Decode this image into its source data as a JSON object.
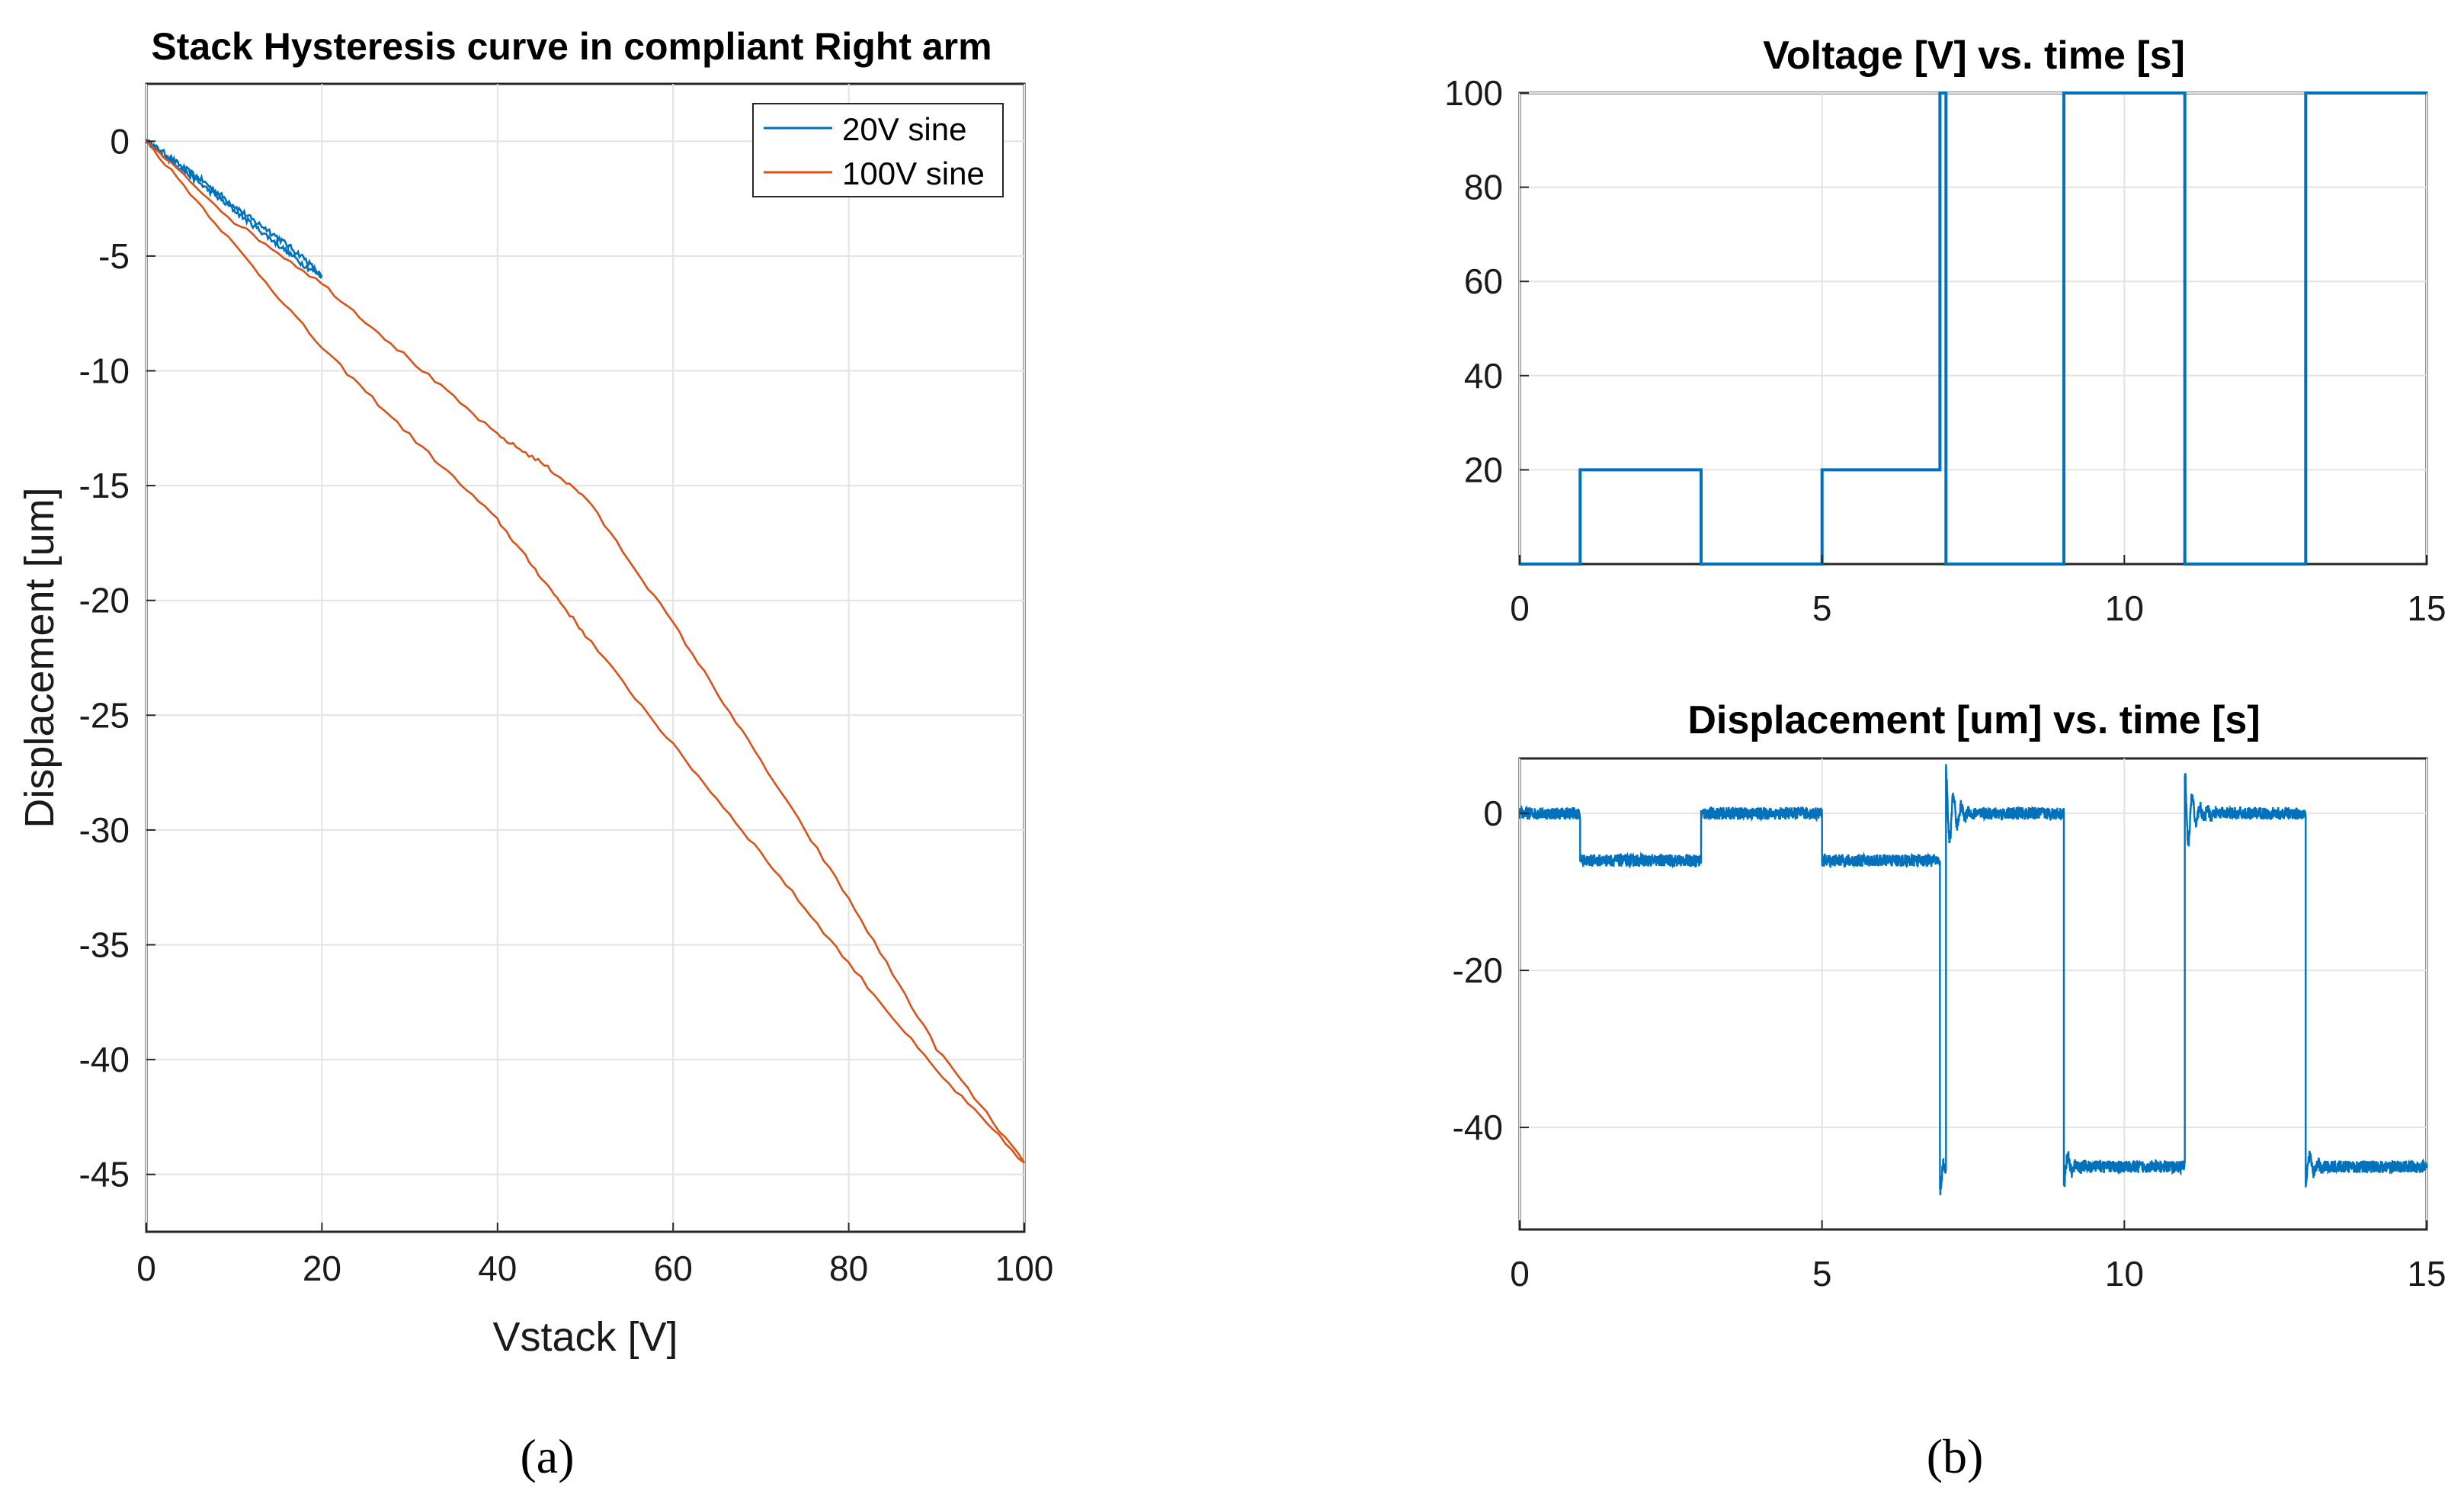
{
  "chart_data": [
    {
      "id": "a",
      "type": "line",
      "title": "Stack Hysteresis curve in compliant Right arm",
      "xlabel": "Vstack [V]",
      "ylabel": "Displacement [um]",
      "xlim": [
        0,
        100
      ],
      "ylim": [
        -47.5,
        2.5
      ],
      "xticks": [
        0,
        20,
        40,
        60,
        80,
        100
      ],
      "yticks": [
        0,
        -5,
        -10,
        -15,
        -20,
        -25,
        -30,
        -35,
        -40,
        -45
      ],
      "grid": true,
      "legend_position": "top-right",
      "caption": "(a)",
      "series": [
        {
          "name": "20V sine",
          "color": "#0072BD",
          "x": [
            0,
            2,
            4,
            6,
            8,
            10,
            12,
            14,
            16,
            18,
            20
          ],
          "y_up": [
            0,
            -0.5,
            -1.1,
            -1.6,
            -2.2,
            -2.8,
            -3.4,
            -3.9,
            -4.5,
            -5.1,
            -5.9
          ],
          "y_down": [
            0,
            -0.6,
            -1.2,
            -1.8,
            -2.4,
            -3.0,
            -3.6,
            -4.2,
            -4.8,
            -5.4,
            -5.9
          ]
        },
        {
          "name": "100V sine",
          "color": "#D95319",
          "x": [
            0,
            10,
            20,
            30,
            40,
            45,
            50,
            60,
            70,
            80,
            90,
            100
          ],
          "y_up": [
            0,
            -4.5,
            -9.0,
            -12.8,
            -16.5,
            -19.0,
            -21.5,
            -26.3,
            -31.0,
            -35.8,
            -40.5,
            -44.5
          ],
          "y_down": [
            0,
            -3.5,
            -6.2,
            -9.5,
            -12.8,
            -14.0,
            -15.5,
            -21.0,
            -27.0,
            -33.0,
            -39.5,
            -44.5
          ]
        }
      ]
    },
    {
      "id": "b-top",
      "type": "line",
      "title": "Voltage [V] vs. time [s]",
      "xlim": [
        0,
        15
      ],
      "ylim": [
        0,
        100
      ],
      "xticks": [
        0,
        5,
        10,
        15
      ],
      "yticks": [
        20,
        40,
        60,
        80,
        100
      ],
      "grid": true,
      "caption": "(b)",
      "series": [
        {
          "name": "Voltage",
          "color": "#0072BD",
          "x": [
            0,
            1,
            1,
            3,
            3,
            5,
            5,
            6.95,
            6.95,
            7.05,
            7.05,
            9,
            9,
            11,
            11,
            13,
            13,
            15
          ],
          "y": [
            0,
            0,
            20,
            20,
            0,
            0,
            20,
            20,
            100,
            100,
            0,
            0,
            100,
            100,
            0,
            0,
            100,
            100
          ]
        }
      ]
    },
    {
      "id": "b-bottom",
      "type": "line",
      "title": "Displacement [um] vs. time [s]",
      "xlim": [
        0,
        15
      ],
      "ylim": [
        -53,
        7
      ],
      "xticks": [
        0,
        5,
        10,
        15
      ],
      "yticks": [
        0,
        -20,
        -40
      ],
      "grid": true,
      "series": [
        {
          "name": "Displacement",
          "color": "#0072BD",
          "x": [
            0,
            1,
            1,
            3,
            3,
            5,
            5,
            6.95,
            6.95,
            7.05,
            7.05,
            9,
            9,
            11,
            11,
            13,
            13,
            15
          ],
          "y": [
            0,
            0,
            -6,
            -6,
            0,
            0,
            -6,
            -6,
            -46,
            -46,
            0,
            0,
            -45,
            -45,
            0,
            0,
            -45,
            -45
          ]
        }
      ]
    }
  ]
}
